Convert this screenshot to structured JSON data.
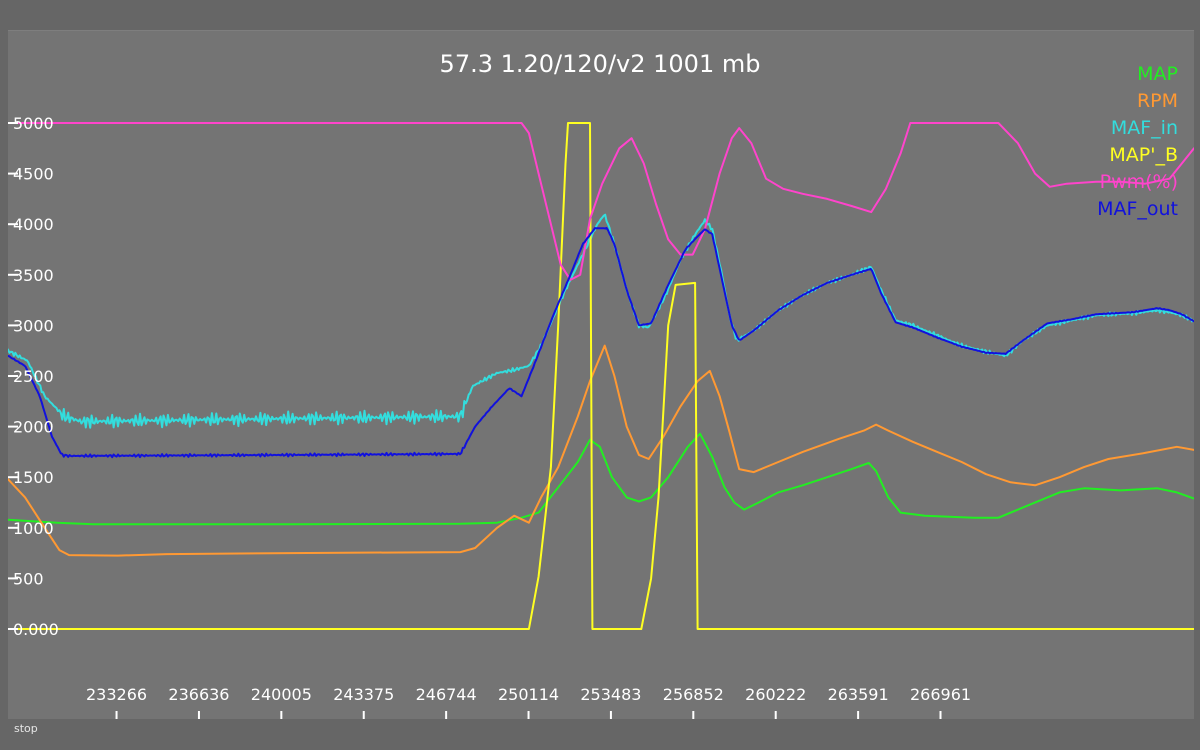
{
  "status": "stop",
  "chart_data": {
    "type": "line",
    "title": "57.3 1.20/120/v2 1001 mb",
    "xlabel": "",
    "ylabel": "",
    "xlim": [
      228500,
      277000
    ],
    "ylim": [
      -1000,
      5250
    ],
    "grid": false,
    "legend_position": "top-right",
    "y_ticks": [
      0,
      500,
      1000,
      1500,
      2000,
      2500,
      3000,
      3500,
      4000,
      4500,
      5000
    ],
    "y_tick_labels": [
      "0.000",
      "500",
      "1000",
      "1500",
      "2000",
      "2500",
      "3000",
      "3500",
      "4000",
      "4500",
      "5000"
    ],
    "x_ticks": [
      233266,
      236636,
      240005,
      243375,
      246744,
      250114,
      253483,
      256852,
      260222,
      263591,
      266961
    ],
    "x_tick_labels": [
      "233266",
      "236636",
      "240005",
      "243375",
      "246744",
      "250114",
      "253483",
      "256852",
      "260222",
      "263591",
      "266961"
    ],
    "series": [
      {
        "name": "MAP",
        "color": "#22ee22",
        "noise": 0,
        "points": [
          [
            228500,
            1080
          ],
          [
            230500,
            1050
          ],
          [
            232000,
            1035
          ],
          [
            240000,
            1035
          ],
          [
            247000,
            1040
          ],
          [
            248500,
            1050
          ],
          [
            249500,
            1100
          ],
          [
            250200,
            1150
          ],
          [
            251000,
            1400
          ],
          [
            251800,
            1650
          ],
          [
            252300,
            1870
          ],
          [
            252700,
            1800
          ],
          [
            253200,
            1500
          ],
          [
            253800,
            1300
          ],
          [
            254300,
            1260
          ],
          [
            254800,
            1300
          ],
          [
            255500,
            1500
          ],
          [
            256300,
            1800
          ],
          [
            256800,
            1930
          ],
          [
            257300,
            1700
          ],
          [
            257800,
            1400
          ],
          [
            258200,
            1250
          ],
          [
            258600,
            1180
          ],
          [
            259200,
            1250
          ],
          [
            260000,
            1350
          ],
          [
            261000,
            1420
          ],
          [
            262000,
            1500
          ],
          [
            263000,
            1580
          ],
          [
            263700,
            1640
          ],
          [
            264000,
            1560
          ],
          [
            264500,
            1300
          ],
          [
            265000,
            1150
          ],
          [
            266000,
            1120
          ],
          [
            268000,
            1100
          ],
          [
            269000,
            1100
          ],
          [
            270000,
            1200
          ],
          [
            271500,
            1350
          ],
          [
            272500,
            1390
          ],
          [
            274000,
            1370
          ],
          [
            275500,
            1390
          ],
          [
            276300,
            1350
          ],
          [
            277000,
            1290
          ]
        ]
      },
      {
        "name": "RPM",
        "color": "#ff9933",
        "noise": 0,
        "points": [
          [
            228500,
            1480
          ],
          [
            229200,
            1300
          ],
          [
            230000,
            1000
          ],
          [
            230600,
            780
          ],
          [
            231000,
            730
          ],
          [
            233000,
            725
          ],
          [
            235000,
            740
          ],
          [
            240000,
            750
          ],
          [
            247000,
            760
          ],
          [
            247600,
            800
          ],
          [
            248500,
            1000
          ],
          [
            249200,
            1120
          ],
          [
            249800,
            1050
          ],
          [
            250300,
            1300
          ],
          [
            251000,
            1600
          ],
          [
            251800,
            2100
          ],
          [
            252300,
            2450
          ],
          [
            252900,
            2800
          ],
          [
            253300,
            2500
          ],
          [
            253800,
            2000
          ],
          [
            254300,
            1720
          ],
          [
            254700,
            1680
          ],
          [
            255300,
            1900
          ],
          [
            256000,
            2200
          ],
          [
            256700,
            2450
          ],
          [
            257200,
            2550
          ],
          [
            257600,
            2300
          ],
          [
            258000,
            1950
          ],
          [
            258400,
            1580
          ],
          [
            259000,
            1550
          ],
          [
            260000,
            1650
          ],
          [
            261000,
            1750
          ],
          [
            262500,
            1880
          ],
          [
            263500,
            1960
          ],
          [
            264000,
            2020
          ],
          [
            264500,
            1960
          ],
          [
            265500,
            1850
          ],
          [
            266500,
            1750
          ],
          [
            267500,
            1650
          ],
          [
            268500,
            1530
          ],
          [
            269500,
            1450
          ],
          [
            270500,
            1420
          ],
          [
            271500,
            1500
          ],
          [
            272500,
            1600
          ],
          [
            273500,
            1680
          ],
          [
            275000,
            1740
          ],
          [
            276300,
            1800
          ],
          [
            277000,
            1770
          ]
        ]
      },
      {
        "name": "MAF_in",
        "color": "#33dddd",
        "noise": 70,
        "points": [
          [
            228500,
            2750
          ],
          [
            229300,
            2650
          ],
          [
            230000,
            2300
          ],
          [
            230800,
            2100
          ],
          [
            231500,
            2050
          ],
          [
            240000,
            2080
          ],
          [
            247000,
            2100
          ],
          [
            247500,
            2400
          ],
          [
            248500,
            2530
          ],
          [
            249200,
            2560
          ],
          [
            249800,
            2600
          ],
          [
            250300,
            2800
          ],
          [
            251200,
            3300
          ],
          [
            252000,
            3700
          ],
          [
            252600,
            4000
          ],
          [
            252900,
            4100
          ],
          [
            253300,
            3800
          ],
          [
            253800,
            3350
          ],
          [
            254300,
            3000
          ],
          [
            254700,
            2980
          ],
          [
            255400,
            3300
          ],
          [
            256000,
            3650
          ],
          [
            256600,
            3900
          ],
          [
            257000,
            4040
          ],
          [
            257300,
            3950
          ],
          [
            257700,
            3500
          ],
          [
            258000,
            3100
          ],
          [
            258300,
            2850
          ],
          [
            259000,
            2950
          ],
          [
            260000,
            3150
          ],
          [
            261000,
            3300
          ],
          [
            262000,
            3420
          ],
          [
            263000,
            3500
          ],
          [
            263800,
            3580
          ],
          [
            264200,
            3350
          ],
          [
            264800,
            3050
          ],
          [
            265500,
            3000
          ],
          [
            266500,
            2900
          ],
          [
            267500,
            2800
          ],
          [
            268500,
            2740
          ],
          [
            269300,
            2700
          ],
          [
            270000,
            2850
          ],
          [
            271000,
            3000
          ],
          [
            272000,
            3050
          ],
          [
            273000,
            3100
          ],
          [
            274500,
            3120
          ],
          [
            275500,
            3150
          ],
          [
            276000,
            3130
          ],
          [
            276500,
            3100
          ],
          [
            277000,
            3040
          ]
        ]
      },
      {
        "name": "MAP'_B",
        "color": "#ffff22",
        "noise": 0,
        "points": [
          [
            228500,
            0
          ],
          [
            249800,
            0
          ],
          [
            250200,
            520
          ],
          [
            250700,
            1600
          ],
          [
            251000,
            3000
          ],
          [
            251300,
            4600
          ],
          [
            251400,
            5000
          ],
          [
            252300,
            5000
          ],
          [
            252400,
            0
          ],
          [
            254400,
            0
          ],
          [
            254800,
            500
          ],
          [
            255100,
            1300
          ],
          [
            255500,
            3000
          ],
          [
            255800,
            3400
          ],
          [
            256600,
            3420
          ],
          [
            256700,
            0
          ],
          [
            277000,
            0
          ]
        ]
      },
      {
        "name": "Pwm(%)",
        "color": "#ff44cc",
        "noise": 0,
        "points": [
          [
            228500,
            5000
          ],
          [
            249500,
            5000
          ],
          [
            249800,
            4900
          ],
          [
            250200,
            4500
          ],
          [
            250700,
            4000
          ],
          [
            251100,
            3600
          ],
          [
            251500,
            3450
          ],
          [
            251900,
            3500
          ],
          [
            252300,
            4050
          ],
          [
            252800,
            4400
          ],
          [
            253500,
            4750
          ],
          [
            254000,
            4850
          ],
          [
            254500,
            4600
          ],
          [
            255000,
            4200
          ],
          [
            255500,
            3850
          ],
          [
            256000,
            3700
          ],
          [
            256500,
            3700
          ],
          [
            257000,
            3950
          ],
          [
            257600,
            4500
          ],
          [
            258100,
            4850
          ],
          [
            258400,
            4950
          ],
          [
            258900,
            4800
          ],
          [
            259500,
            4450
          ],
          [
            260200,
            4350
          ],
          [
            261000,
            4300
          ],
          [
            262000,
            4250
          ],
          [
            263000,
            4180
          ],
          [
            263800,
            4120
          ],
          [
            264400,
            4350
          ],
          [
            265000,
            4700
          ],
          [
            265400,
            5000
          ],
          [
            268000,
            5000
          ],
          [
            269000,
            5000
          ],
          [
            269800,
            4800
          ],
          [
            270500,
            4500
          ],
          [
            271100,
            4370
          ],
          [
            271800,
            4400
          ],
          [
            273000,
            4420
          ],
          [
            274000,
            4420
          ],
          [
            275000,
            4400
          ],
          [
            276000,
            4450
          ],
          [
            276500,
            4600
          ],
          [
            277000,
            4750
          ]
        ]
      },
      {
        "name": "MAF_out",
        "color": "#1111dd",
        "noise": 15,
        "points": [
          [
            228500,
            2700
          ],
          [
            229200,
            2600
          ],
          [
            229800,
            2300
          ],
          [
            230300,
            1900
          ],
          [
            230700,
            1720
          ],
          [
            231000,
            1710
          ],
          [
            240000,
            1720
          ],
          [
            247000,
            1730
          ],
          [
            247600,
            2000
          ],
          [
            248300,
            2200
          ],
          [
            249000,
            2380
          ],
          [
            249500,
            2300
          ],
          [
            250000,
            2600
          ],
          [
            250800,
            3100
          ],
          [
            251500,
            3500
          ],
          [
            252000,
            3800
          ],
          [
            252500,
            3960
          ],
          [
            253000,
            3960
          ],
          [
            253300,
            3800
          ],
          [
            253800,
            3350
          ],
          [
            254300,
            3000
          ],
          [
            254800,
            3020
          ],
          [
            255500,
            3400
          ],
          [
            256200,
            3750
          ],
          [
            256700,
            3880
          ],
          [
            257000,
            3950
          ],
          [
            257300,
            3900
          ],
          [
            257700,
            3450
          ],
          [
            258100,
            3000
          ],
          [
            258400,
            2850
          ],
          [
            259000,
            2950
          ],
          [
            260000,
            3150
          ],
          [
            261000,
            3300
          ],
          [
            262000,
            3420
          ],
          [
            263000,
            3500
          ],
          [
            263800,
            3560
          ],
          [
            264200,
            3320
          ],
          [
            264800,
            3030
          ],
          [
            265500,
            2980
          ],
          [
            266500,
            2880
          ],
          [
            267500,
            2790
          ],
          [
            268500,
            2730
          ],
          [
            269300,
            2720
          ],
          [
            270000,
            2850
          ],
          [
            271000,
            3020
          ],
          [
            272000,
            3060
          ],
          [
            273000,
            3110
          ],
          [
            274500,
            3130
          ],
          [
            275500,
            3170
          ],
          [
            276000,
            3150
          ],
          [
            276500,
            3110
          ],
          [
            277000,
            3040
          ]
        ]
      }
    ]
  }
}
